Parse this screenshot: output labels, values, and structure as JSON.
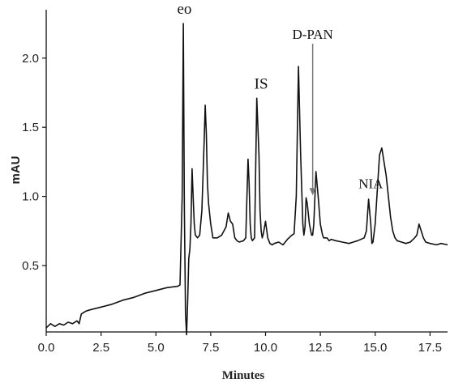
{
  "chart_data": {
    "type": "line",
    "title": "",
    "xlabel": "Minutes",
    "ylabel": "mAU",
    "xlim": [
      0.0,
      18.3
    ],
    "ylim": [
      0.02,
      2.35
    ],
    "x_ticks": [
      "0.0",
      "2.5",
      "5.0",
      "7.5",
      "10.0",
      "12.5",
      "15.0",
      "17.5"
    ],
    "x_tick_values": [
      0.0,
      2.5,
      5.0,
      7.5,
      10.0,
      12.5,
      15.0,
      17.5
    ],
    "y_ticks": [
      "0.5",
      "1.0",
      "1.5",
      "2.0"
    ],
    "y_tick_values": [
      0.5,
      1.0,
      1.5,
      2.0
    ],
    "grid": false,
    "annotations": [
      {
        "text": "eo",
        "x": 6.3,
        "y": 2.25
      },
      {
        "text": "IS",
        "x": 9.8,
        "y": 1.71
      },
      {
        "text": "D-PAN",
        "x": 12.15,
        "y": 0.99,
        "arrow": true
      },
      {
        "text": "NIA",
        "x": 14.8,
        "y": 0.99
      }
    ],
    "series": [
      {
        "x": [
          0.0,
          0.2,
          0.4,
          0.6,
          0.8,
          1.0,
          1.2,
          1.4,
          1.5,
          1.6,
          1.8,
          2.0,
          2.5,
          3.0,
          3.5,
          4.0,
          4.5,
          5.0,
          5.5,
          6.0,
          6.1,
          6.2,
          6.25,
          6.3,
          6.35,
          6.4,
          6.45,
          6.5,
          6.55,
          6.6,
          6.65,
          6.7,
          6.75,
          6.8,
          6.9,
          7.0,
          7.1,
          7.2,
          7.25,
          7.3,
          7.35,
          7.4,
          7.5,
          7.6,
          7.8,
          8.0,
          8.2,
          8.3,
          8.4,
          8.5,
          8.6,
          8.7,
          8.8,
          9.0,
          9.1,
          9.2,
          9.25,
          9.3,
          9.35,
          9.4,
          9.5,
          9.6,
          9.7,
          9.75,
          9.8,
          9.85,
          9.9,
          10.0,
          10.1,
          10.2,
          10.3,
          10.4,
          10.6,
          10.8,
          11.0,
          11.2,
          11.3,
          11.4,
          11.5,
          11.6,
          11.7,
          11.75,
          11.8,
          11.85,
          11.9,
          12.0,
          12.1,
          12.15,
          12.2,
          12.3,
          12.4,
          12.5,
          12.6,
          12.65,
          12.7,
          12.8,
          12.9,
          13.0,
          13.2,
          13.5,
          13.8,
          14.0,
          14.2,
          14.5,
          14.6,
          14.7,
          14.8,
          14.85,
          14.9,
          15.0,
          15.1,
          15.2,
          15.3,
          15.4,
          15.5,
          15.6,
          15.7,
          15.8,
          15.9,
          16.0,
          16.2,
          16.4,
          16.6,
          16.8,
          16.9,
          17.0,
          17.1,
          17.2,
          17.3,
          17.5,
          17.8,
          18.0,
          18.3
        ],
        "values": [
          0.05,
          0.08,
          0.06,
          0.08,
          0.07,
          0.09,
          0.08,
          0.1,
          0.08,
          0.15,
          0.17,
          0.18,
          0.2,
          0.22,
          0.25,
          0.27,
          0.3,
          0.32,
          0.34,
          0.35,
          0.36,
          1.0,
          2.25,
          0.9,
          0.15,
          0.0,
          0.25,
          0.55,
          0.62,
          0.8,
          1.2,
          1.0,
          0.8,
          0.72,
          0.7,
          0.72,
          0.9,
          1.4,
          1.66,
          1.45,
          1.1,
          0.95,
          0.8,
          0.7,
          0.7,
          0.72,
          0.78,
          0.88,
          0.82,
          0.8,
          0.7,
          0.68,
          0.67,
          0.68,
          0.7,
          1.27,
          1.1,
          0.8,
          0.7,
          0.68,
          0.7,
          1.71,
          1.3,
          0.9,
          0.75,
          0.7,
          0.73,
          0.82,
          0.7,
          0.66,
          0.65,
          0.66,
          0.67,
          0.65,
          0.69,
          0.72,
          0.73,
          1.0,
          1.94,
          1.3,
          0.8,
          0.72,
          0.78,
          0.99,
          0.95,
          0.8,
          0.72,
          0.72,
          0.8,
          1.18,
          1.0,
          0.8,
          0.72,
          0.7,
          0.7,
          0.7,
          0.68,
          0.69,
          0.68,
          0.67,
          0.66,
          0.67,
          0.68,
          0.7,
          0.75,
          0.98,
          0.8,
          0.66,
          0.67,
          0.8,
          1.05,
          1.3,
          1.35,
          1.25,
          1.15,
          1.0,
          0.85,
          0.75,
          0.7,
          0.68,
          0.67,
          0.66,
          0.67,
          0.7,
          0.72,
          0.8,
          0.75,
          0.7,
          0.67,
          0.66,
          0.65,
          0.66,
          0.65
        ]
      }
    ]
  }
}
